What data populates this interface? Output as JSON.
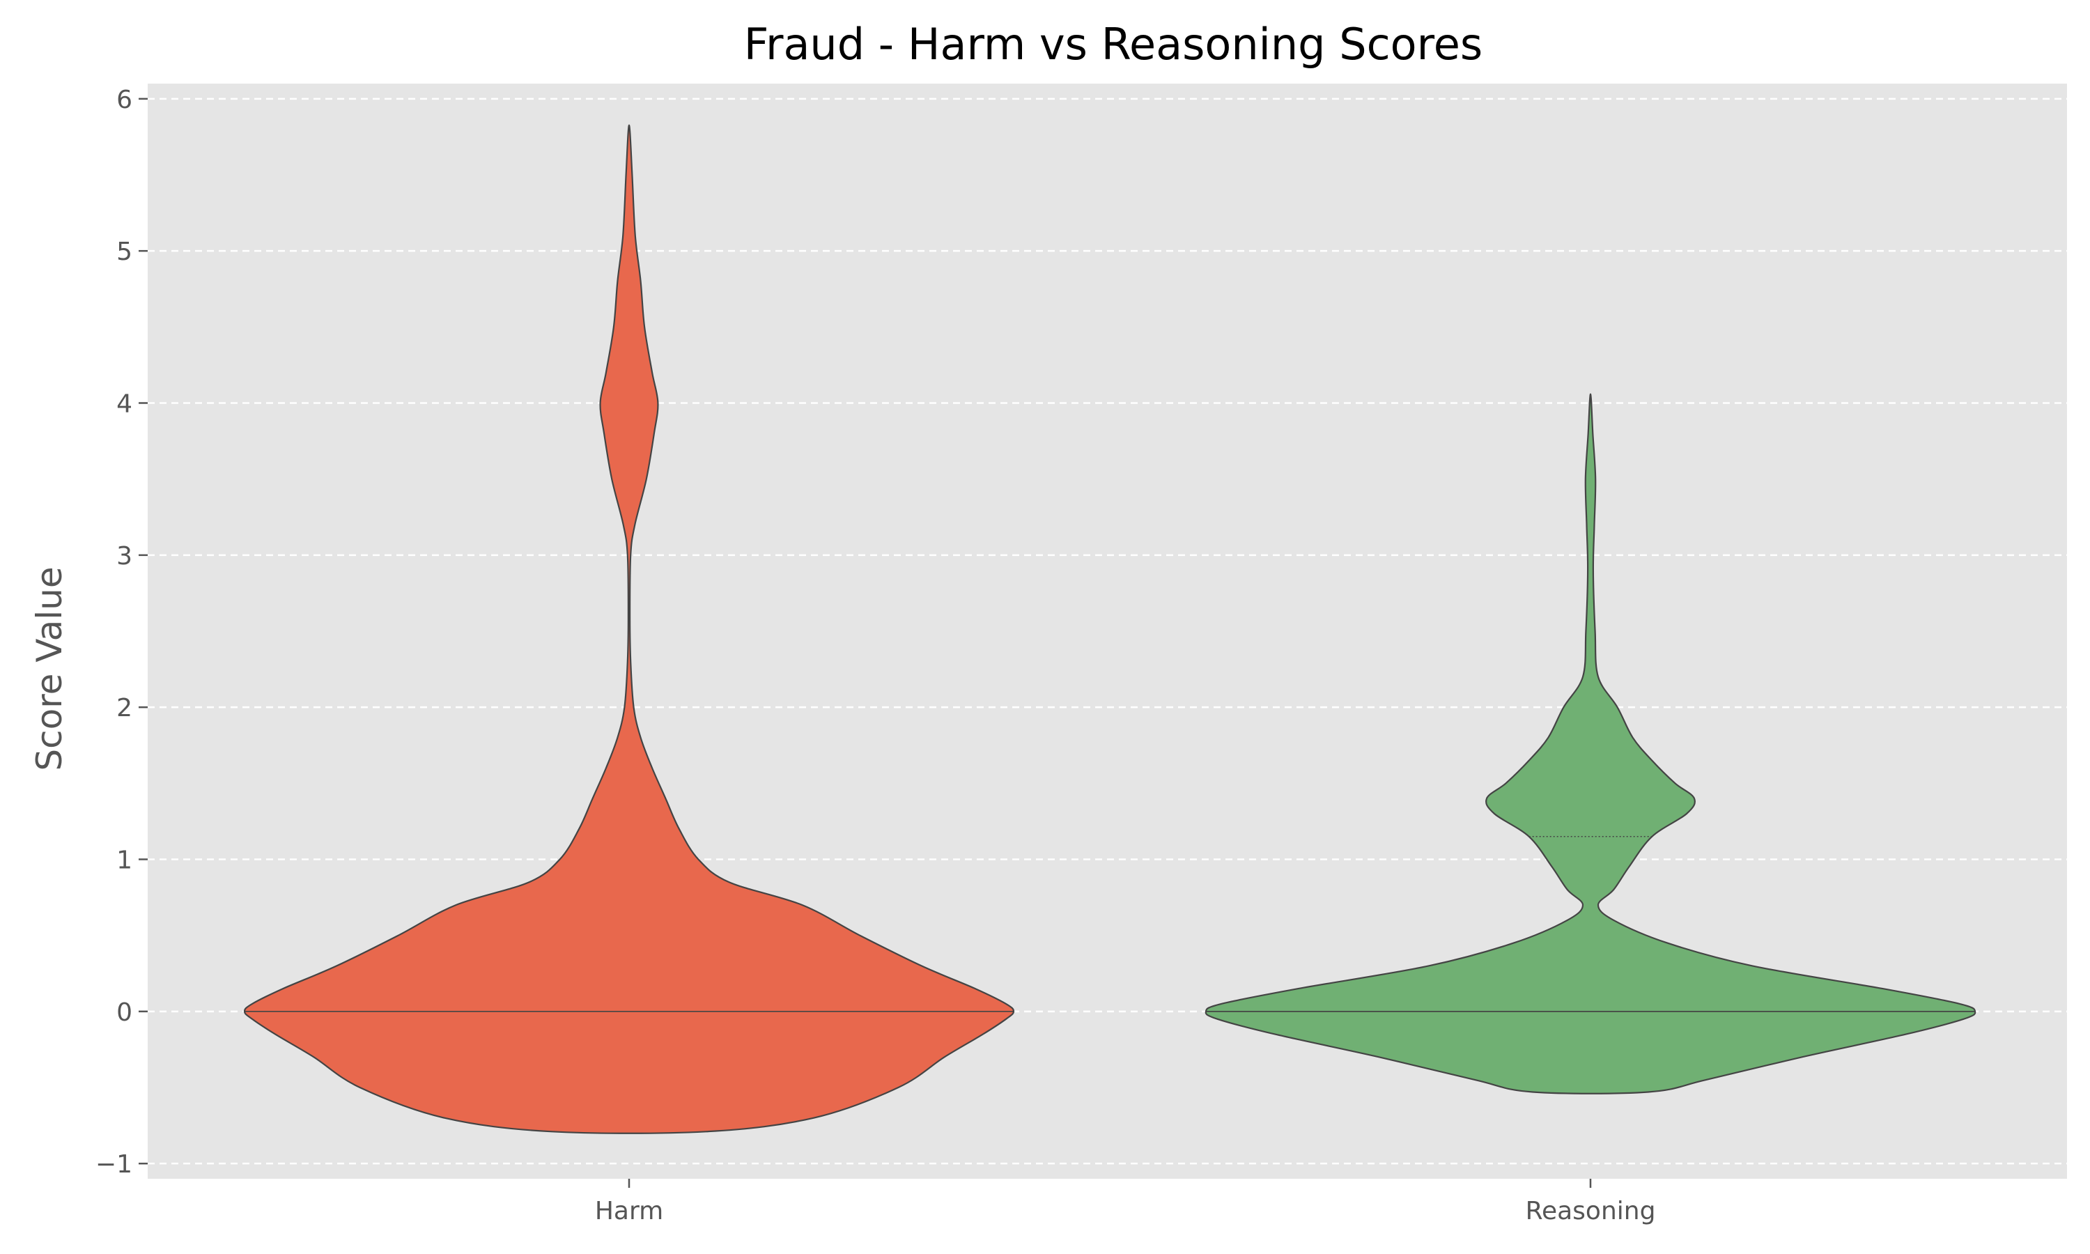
{
  "chart_data": {
    "type": "violin",
    "title": "Fraud - Harm vs Reasoning Scores",
    "xlabel": "",
    "ylabel": "Score Value",
    "ylim": [
      -1.1,
      6.1
    ],
    "yticks": [
      -1,
      0,
      1,
      2,
      3,
      4,
      5,
      6
    ],
    "ytick_labels": [
      "−1",
      "0",
      "1",
      "2",
      "3",
      "4",
      "5",
      "6"
    ],
    "grid": "horizontal dashed",
    "background": "#e5e5e5",
    "categories": [
      "Harm",
      "Reasoning"
    ],
    "series": [
      {
        "category": "Harm",
        "color": "#e8684d",
        "min": -0.79,
        "max": 5.79,
        "quartile_lines": [
          0.0
        ],
        "density_profile": [
          [
            -0.79,
            0.2
          ],
          [
            -0.7,
            0.48
          ],
          [
            -0.5,
            0.7
          ],
          [
            -0.3,
            0.82
          ],
          [
            -0.15,
            0.92
          ],
          [
            -0.05,
            0.98
          ],
          [
            0.0,
            1.0
          ],
          [
            0.05,
            0.98
          ],
          [
            0.15,
            0.9
          ],
          [
            0.3,
            0.76
          ],
          [
            0.5,
            0.6
          ],
          [
            0.7,
            0.45
          ],
          [
            0.85,
            0.26
          ],
          [
            1.0,
            0.18
          ],
          [
            1.2,
            0.13
          ],
          [
            1.4,
            0.095
          ],
          [
            1.6,
            0.06
          ],
          [
            1.8,
            0.03
          ],
          [
            2.0,
            0.012
          ],
          [
            2.3,
            0.004
          ],
          [
            2.6,
            0.002
          ],
          [
            3.0,
            0.004
          ],
          [
            3.2,
            0.015
          ],
          [
            3.5,
            0.045
          ],
          [
            3.8,
            0.065
          ],
          [
            4.0,
            0.075
          ],
          [
            4.2,
            0.06
          ],
          [
            4.5,
            0.04
          ],
          [
            4.8,
            0.03
          ],
          [
            5.1,
            0.016
          ],
          [
            5.5,
            0.008
          ],
          [
            5.79,
            0.002
          ]
        ]
      },
      {
        "category": "Reasoning",
        "color": "#70b073",
        "min": -0.53,
        "max": 4.03,
        "quartile_lines": [
          0.0,
          0.0,
          1.15
        ],
        "density_profile": [
          [
            -0.53,
            0.15
          ],
          [
            -0.45,
            0.3
          ],
          [
            -0.3,
            0.55
          ],
          [
            -0.15,
            0.82
          ],
          [
            -0.05,
            0.97
          ],
          [
            0.0,
            1.0
          ],
          [
            0.05,
            0.96
          ],
          [
            0.15,
            0.76
          ],
          [
            0.3,
            0.42
          ],
          [
            0.45,
            0.2
          ],
          [
            0.6,
            0.06
          ],
          [
            0.7,
            0.02
          ],
          [
            0.8,
            0.06
          ],
          [
            0.95,
            0.1
          ],
          [
            1.15,
            0.16
          ],
          [
            1.3,
            0.25
          ],
          [
            1.4,
            0.27
          ],
          [
            1.5,
            0.22
          ],
          [
            1.65,
            0.16
          ],
          [
            1.8,
            0.11
          ],
          [
            2.0,
            0.07
          ],
          [
            2.2,
            0.02
          ],
          [
            2.5,
            0.012
          ],
          [
            2.9,
            0.007
          ],
          [
            3.2,
            0.01
          ],
          [
            3.5,
            0.013
          ],
          [
            3.8,
            0.006
          ],
          [
            4.03,
            0.0015
          ]
        ]
      }
    ]
  }
}
